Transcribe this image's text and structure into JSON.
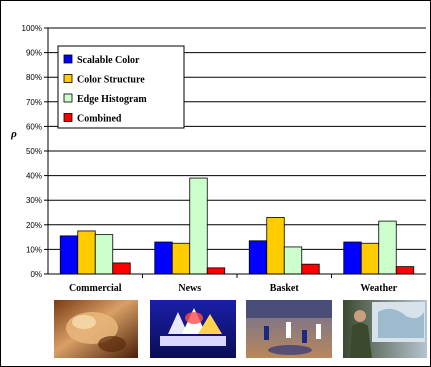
{
  "chart_data": {
    "type": "bar",
    "title": "",
    "xlabel": "",
    "ylabel": "ρ",
    "ylim": [
      0,
      100
    ],
    "y_ticks": [
      "0%",
      "10%",
      "20%",
      "30%",
      "40%",
      "50%",
      "60%",
      "70%",
      "80%",
      "90%",
      "100%"
    ],
    "categories": [
      "Commercial",
      "News",
      "Basket",
      "Weather"
    ],
    "series": [
      {
        "name": "Scalable Color",
        "color": "#0000ff",
        "values": [
          15.5,
          13,
          13.5,
          13
        ]
      },
      {
        "name": "Color Structure",
        "color": "#ffcc00",
        "values": [
          17.5,
          12.5,
          23,
          12.5
        ]
      },
      {
        "name": "Edge Histogram",
        "color": "#ccffcc",
        "values": [
          16,
          39,
          11,
          21.5
        ]
      },
      {
        "name": "Combined",
        "color": "#ff0000",
        "values": [
          4.5,
          2.5,
          4,
          3
        ]
      }
    ],
    "grid": true,
    "legend_position": "top-left",
    "thumbnails": [
      "food-closeup-image",
      "msnbc-logo-image",
      "basketball-game-image",
      "weather-map-image"
    ]
  }
}
